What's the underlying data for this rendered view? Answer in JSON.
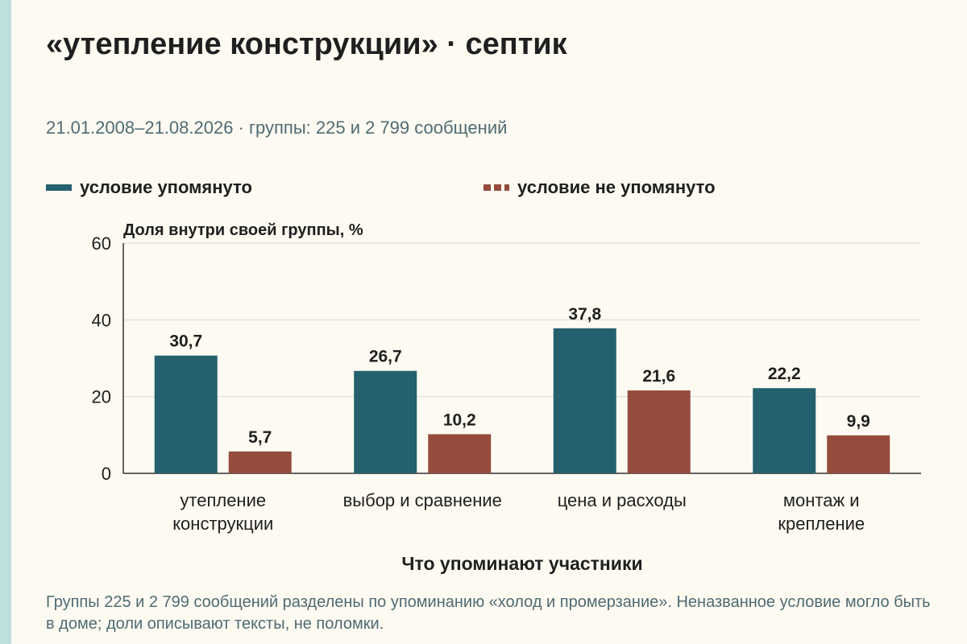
{
  "header": {
    "title": "«утепление конструкции» · септик",
    "subtitle": "21.01.2008–21.08.2026 · группы: 225 и 2 799 сообщений"
  },
  "footnote": "Группы 225 и 2 799 сообщений разделены по упоминанию «холод и промерзание». Неназванное условие могло быть в доме; доли описывают тексты, не поломки.",
  "colors": {
    "mentioned": "#25606e",
    "not_mentioned": "#954c3c",
    "grid": "#d9d9d2",
    "axis": "#333333"
  },
  "chart_data": {
    "type": "bar",
    "ylabel": "Доля внутри своей группы, %",
    "xlabel": "Что упоминают участники",
    "ylim": [
      0,
      60
    ],
    "yticks": [
      0,
      20,
      40,
      60
    ],
    "grid": true,
    "legend_position": "top",
    "categories": [
      [
        "утепление",
        "конструкции"
      ],
      [
        "выбор и сравнение"
      ],
      [
        "цена и расходы"
      ],
      [
        "монтаж и",
        "крепление"
      ]
    ],
    "series": [
      {
        "name": "условие упомянуто",
        "values": [
          30.7,
          26.7,
          37.8,
          22.2
        ],
        "labels": [
          "30,7",
          "26,7",
          "37,8",
          "22,2"
        ]
      },
      {
        "name": "условие не упомянуто",
        "values": [
          5.7,
          10.2,
          21.6,
          9.9
        ],
        "labels": [
          "5,7",
          "10,2",
          "21,6",
          "9,9"
        ]
      }
    ]
  }
}
